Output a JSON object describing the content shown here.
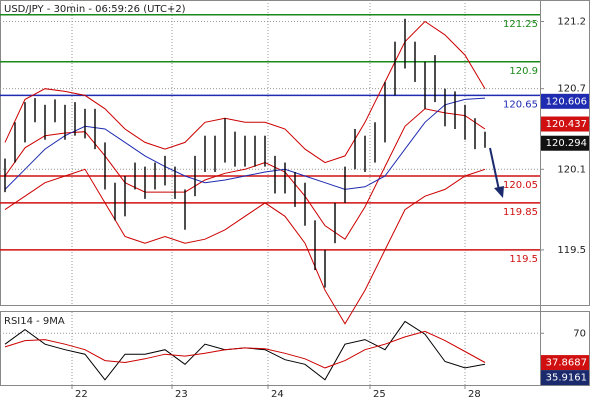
{
  "chart_data": [
    {
      "type": "ohlc",
      "title": "USD/JPY - 30min - 06:59:26 (UTC+2)",
      "high": [
        120.18,
        120.45,
        120.6,
        120.63,
        120.58,
        120.62,
        120.58,
        120.6,
        120.55,
        120.55,
        120.3,
        120.0,
        120.05,
        120.15,
        120.12,
        120.15,
        120.2,
        120.12,
        119.95,
        120.2,
        120.35,
        120.35,
        120.48,
        120.38,
        120.35,
        120.35,
        120.35,
        120.2,
        120.15,
        120.08,
        120.0,
        119.72,
        119.5,
        119.85,
        120.12,
        120.4,
        120.35,
        120.45,
        120.75,
        121.05,
        121.22,
        121.05,
        120.9,
        120.95,
        120.7,
        120.68,
        120.58,
        120.48,
        120.38
      ],
      "low": [
        119.93,
        120.15,
        120.3,
        120.45,
        120.32,
        120.45,
        120.32,
        120.35,
        120.33,
        120.25,
        119.95,
        119.72,
        119.75,
        119.95,
        119.88,
        119.95,
        119.98,
        119.88,
        119.65,
        119.9,
        120.08,
        120.08,
        120.15,
        120.12,
        120.12,
        120.12,
        120.12,
        119.92,
        119.92,
        119.82,
        119.68,
        119.35,
        119.22,
        119.55,
        119.85,
        120.1,
        120.08,
        120.15,
        120.3,
        120.65,
        120.85,
        120.75,
        120.55,
        120.6,
        120.42,
        120.4,
        120.32,
        120.25,
        120.26
      ],
      "bar_color": "#000000",
      "overlays": {
        "x": [
          0,
          2,
          4,
          6,
          8,
          10,
          12,
          14,
          16,
          18,
          20,
          22,
          24,
          26,
          28,
          30,
          32,
          34,
          36,
          38,
          40,
          42,
          44,
          46,
          48
        ],
        "series": [
          {
            "color": "#cc0000",
            "values": [
              120.3,
              120.62,
              120.7,
              120.68,
              120.65,
              120.55,
              120.4,
              120.3,
              120.25,
              120.3,
              120.45,
              120.48,
              120.45,
              120.45,
              120.4,
              120.25,
              120.15,
              120.2,
              120.45,
              120.75,
              121.05,
              121.2,
              121.1,
              120.95,
              120.7
            ]
          },
          {
            "color": "#cc0000",
            "values": [
              120.05,
              120.26,
              120.35,
              120.37,
              120.38,
              120.2,
              120.0,
              119.93,
              119.93,
              119.93,
              120.02,
              120.07,
              120.1,
              120.15,
              120.08,
              119.9,
              119.68,
              119.58,
              119.82,
              120.12,
              120.42,
              120.55,
              120.52,
              120.5,
              120.4
            ]
          },
          {
            "color": "#cc0000",
            "values": [
              119.8,
              119.9,
              120.0,
              120.05,
              120.1,
              119.85,
              119.6,
              119.55,
              119.6,
              119.55,
              119.58,
              119.65,
              119.75,
              119.85,
              119.75,
              119.55,
              119.2,
              118.95,
              119.2,
              119.5,
              119.8,
              119.9,
              119.95,
              120.05,
              120.1
            ]
          },
          {
            "color": "#1f2bb0",
            "values": [
              119.95,
              120.1,
              120.25,
              120.35,
              120.42,
              120.4,
              120.3,
              120.2,
              120.12,
              120.05,
              120.0,
              120.02,
              120.05,
              120.08,
              120.1,
              120.05,
              120.0,
              119.95,
              119.97,
              120.05,
              120.25,
              120.45,
              120.58,
              120.62,
              120.63
            ]
          }
        ]
      },
      "levels": [
        {
          "value": 121.25,
          "color": "#1a8a1a"
        },
        {
          "value": 120.9,
          "color": "#1a8a1a"
        },
        {
          "value": 120.65,
          "color": "#1f2bb0"
        },
        {
          "value": 120.05,
          "color": "#d01010"
        },
        {
          "value": 119.85,
          "color": "#d01010"
        },
        {
          "value": 119.5,
          "color": "#d01010"
        }
      ],
      "markers": [
        {
          "value": 120.606,
          "color": "#1f2bb0"
        },
        {
          "value": 120.437,
          "color": "#d01010"
        },
        {
          "value": 120.294,
          "color": "#111111"
        }
      ],
      "xlim": [
        -0.5,
        53.5
      ],
      "ylim": [
        119.09,
        121.36
      ],
      "yticks": [
        119.5,
        120.1,
        120.7,
        121.2
      ],
      "grid": true
    },
    {
      "type": "line",
      "title": "RSI14 - 9MA",
      "x": [
        0,
        2,
        4,
        6,
        8,
        10,
        12,
        14,
        16,
        18,
        20,
        22,
        24,
        26,
        28,
        30,
        32,
        34,
        36,
        38,
        40,
        42,
        44,
        46,
        48
      ],
      "series": [
        {
          "color": "#000000",
          "values": [
            58,
            74,
            58,
            52,
            47,
            19,
            47,
            47,
            52,
            36,
            58,
            52,
            54,
            52,
            41,
            36,
            19,
            58,
            63,
            52,
            83,
            69,
            39,
            32,
            36
          ]
        },
        {
          "color": "#cc0000",
          "values": [
            55,
            62,
            63,
            58,
            52,
            40,
            38,
            42,
            47,
            45,
            48,
            52,
            54,
            53,
            48,
            42,
            32,
            40,
            52,
            58,
            66,
            72,
            62,
            50,
            38
          ]
        }
      ],
      "markers": [
        {
          "value": 37.8687,
          "color": "#d01010"
        },
        {
          "value": 35.9161,
          "color": "#1a2a6c"
        }
      ],
      "xlim": [
        -0.5,
        53.5
      ],
      "xticks": [
        {
          "value": 6.7,
          "label": "22"
        },
        {
          "value": 16.7,
          "label": "23"
        },
        {
          "value": 26.3,
          "label": "24"
        },
        {
          "value": 36.5,
          "label": "25"
        },
        {
          "value": 46,
          "label": "28"
        }
      ],
      "ylim": [
        13.3,
        93.3
      ],
      "yticks": [
        70
      ],
      "grid": true
    }
  ]
}
